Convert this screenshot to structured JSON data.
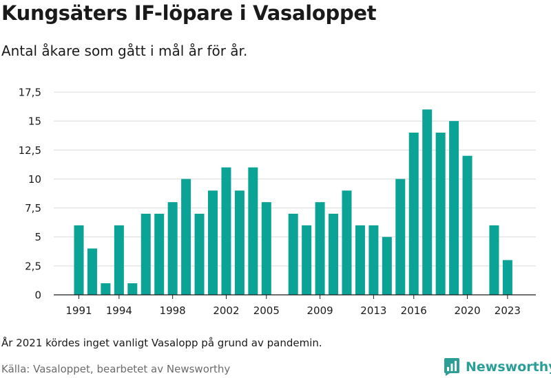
{
  "header": {
    "title": "Kungsäters IF-löpare i Vasaloppet",
    "subtitle": "Antal åkare som gått i mål år för år."
  },
  "footer": {
    "note": "År 2021 kördes inget vanligt Vasalopp på grund av pandemin.",
    "source": "Källa: Vasaloppet, bearbetet av Newsworthy",
    "brand": "Newsworthy"
  },
  "colors": {
    "bar": "#0aa396",
    "grid": "#d9d9d9",
    "brand": "#2b9e97"
  },
  "icons": {
    "brand_logo": "newsworthy-chart-icon"
  },
  "chart_data": {
    "type": "bar",
    "x": [
      1991,
      1992,
      1993,
      1994,
      1995,
      1996,
      1997,
      1998,
      1999,
      2000,
      2001,
      2002,
      2003,
      2004,
      2005,
      2006,
      2007,
      2008,
      2009,
      2010,
      2011,
      2012,
      2013,
      2014,
      2015,
      2016,
      2017,
      2018,
      2019,
      2020,
      2021,
      2022,
      2023
    ],
    "values": [
      6,
      4,
      1,
      6,
      1,
      7,
      7,
      8,
      10,
      7,
      9,
      11,
      9,
      11,
      8,
      0,
      7,
      6,
      8,
      7,
      9,
      6,
      6,
      5,
      10,
      14,
      16,
      14,
      15,
      12,
      0,
      6,
      3
    ],
    "x_ticks": [
      1991,
      1994,
      1998,
      2002,
      2005,
      2009,
      2013,
      2016,
      2020,
      2023
    ],
    "y_ticks": [
      0,
      2.5,
      5,
      7.5,
      10,
      12.5,
      15,
      17.5
    ],
    "y_tick_labels": [
      "0",
      "2,5",
      "5",
      "7,5",
      "10",
      "12,5",
      "15",
      "17,5"
    ],
    "ylim": [
      0,
      17.5
    ],
    "grid": true
  }
}
